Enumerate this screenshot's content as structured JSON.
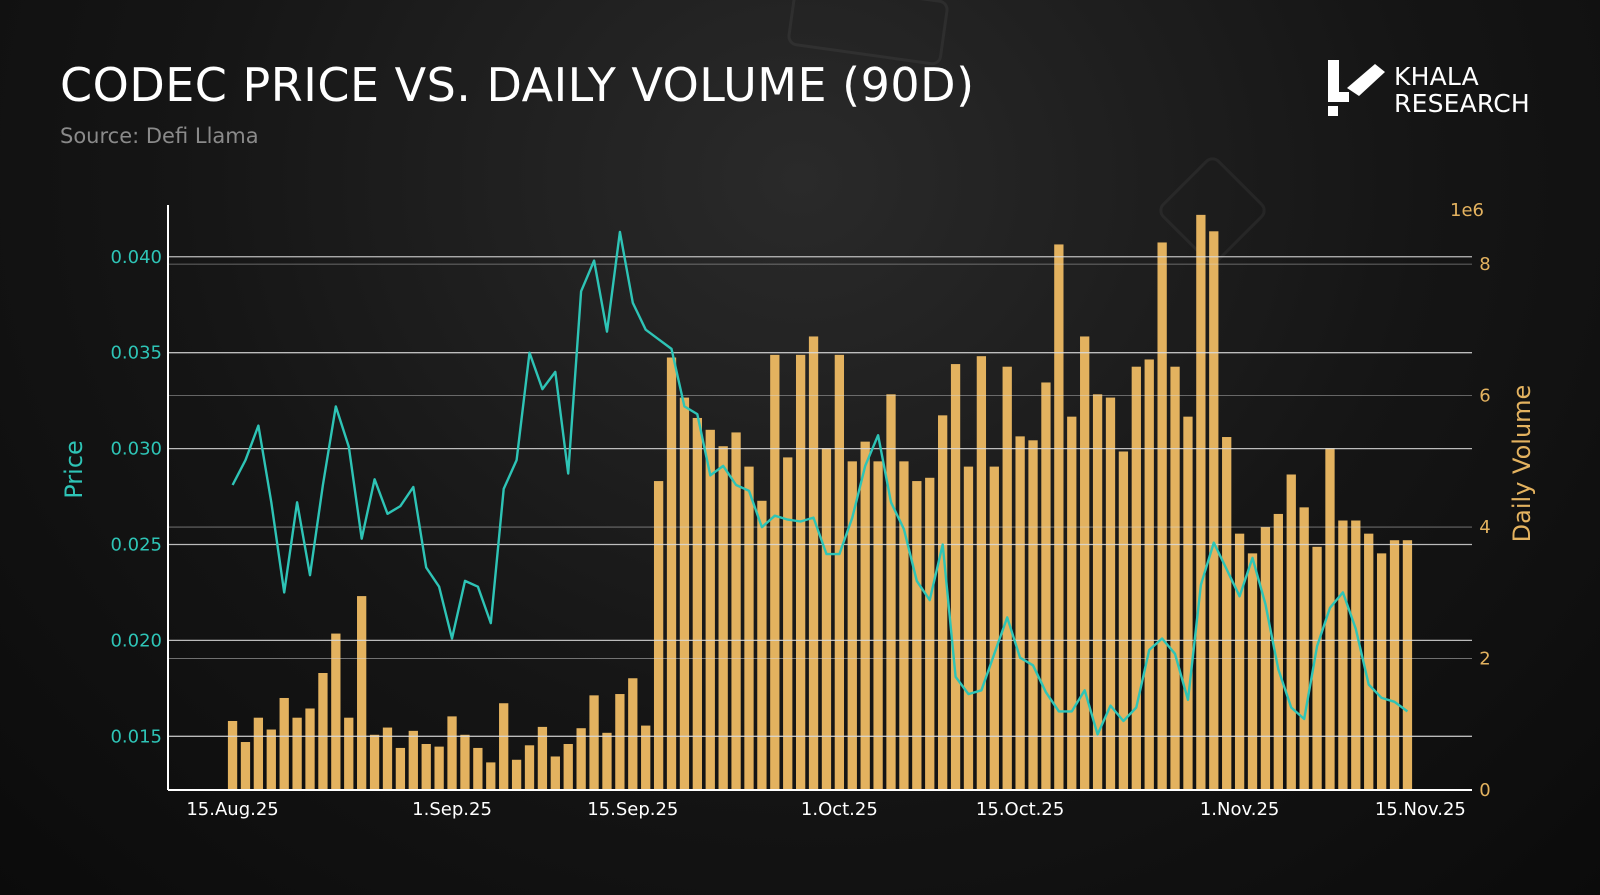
{
  "header": {
    "title": "CODEC PRICE VS. DAILY VOLUME (90D)",
    "subtitle": "Source: Defi Llama"
  },
  "brand": {
    "line1": "KHALA",
    "line2": "RESEARCH"
  },
  "colors": {
    "price": "#2ec4b6",
    "volume": "#e3b25f",
    "grid": "#d9d9d9",
    "axis": "#ffffff",
    "tick_text": "#ffffff",
    "volume_axis_text": "#e3b25f",
    "price_axis_text": "#2ec4b6"
  },
  "chart_data": {
    "type": "bar+line",
    "title": "CODEC PRICE VS. DAILY VOLUME (90D)",
    "ylabel_left": "Price",
    "ylabel_right": "Daily Volume",
    "right_axis_multiplier": "1e6",
    "ylim_left": [
      0.0122,
      0.0427
    ],
    "ylim_right": [
      0,
      8.9
    ],
    "left_ticks": [
      "0.015",
      "0.020",
      "0.025",
      "0.030",
      "0.035",
      "0.040"
    ],
    "left_tick_values": [
      0.015,
      0.02,
      0.025,
      0.03,
      0.035,
      0.04
    ],
    "right_ticks": [
      "0",
      "2",
      "4",
      "6",
      "8"
    ],
    "right_tick_values": [
      0,
      2,
      4,
      6,
      8
    ],
    "x_ticks": [
      {
        "label": "15.Aug.25",
        "day": 0
      },
      {
        "label": "1.Sep.25",
        "day": 17
      },
      {
        "label": "15.Sep.25",
        "day": 31
      },
      {
        "label": "1.Oct.25",
        "day": 47
      },
      {
        "label": "15.Oct.25",
        "day": 61
      },
      {
        "label": "1.Nov.25",
        "day": 78
      },
      {
        "label": "15.Nov.25",
        "day": 92
      }
    ],
    "x_range_days": [
      -5,
      96
    ],
    "grid": true,
    "series": [
      {
        "name": "Daily Volume",
        "type": "bar",
        "axis": "right",
        "unit": "millions",
        "start_day": 0,
        "values": [
          1.05,
          0.73,
          1.1,
          0.92,
          1.4,
          1.1,
          1.24,
          1.78,
          2.38,
          1.1,
          2.95,
          0.84,
          0.95,
          0.64,
          0.9,
          0.7,
          0.66,
          1.12,
          0.84,
          0.64,
          0.42,
          1.32,
          0.46,
          0.68,
          0.96,
          0.51,
          0.7,
          0.94,
          1.44,
          0.87,
          1.46,
          1.7,
          0.98,
          4.7,
          6.58,
          5.97,
          5.66,
          5.48,
          5.23,
          5.44,
          4.92,
          4.4,
          6.62,
          5.06,
          6.62,
          6.9,
          5.2,
          6.62,
          5.0,
          5.3,
          5.0,
          6.02,
          5.0,
          4.7,
          4.75,
          5.7,
          6.48,
          4.92,
          6.6,
          4.92,
          6.44,
          5.38,
          5.32,
          6.2,
          8.3,
          5.68,
          6.9,
          6.02,
          5.97,
          5.15,
          6.44,
          6.55,
          8.33,
          6.44,
          5.68,
          8.75,
          8.5,
          5.37,
          3.9,
          3.6,
          4.0,
          4.2,
          4.8,
          4.3,
          3.7,
          5.2,
          4.1,
          4.1,
          3.9,
          3.6,
          3.8,
          3.8
        ]
      },
      {
        "name": "Price",
        "type": "line",
        "axis": "left",
        "start_day": 0,
        "values": [
          0.0281,
          0.0294,
          0.0312,
          0.0272,
          0.0225,
          0.0272,
          0.0234,
          0.0281,
          0.0322,
          0.0301,
          0.0253,
          0.0284,
          0.0266,
          0.027,
          0.028,
          0.0238,
          0.0228,
          0.0201,
          0.0231,
          0.0228,
          0.0209,
          0.0279,
          0.0294,
          0.035,
          0.0331,
          0.034,
          0.0287,
          0.0382,
          0.0398,
          0.0361,
          0.0413,
          0.0376,
          0.0362,
          0.0357,
          0.0352,
          0.0322,
          0.0318,
          0.0286,
          0.0291,
          0.0281,
          0.0278,
          0.0259,
          0.0265,
          0.0263,
          0.0262,
          0.0264,
          0.0245,
          0.0245,
          0.0264,
          0.0291,
          0.0307,
          0.0272,
          0.0258,
          0.0231,
          0.0221,
          0.025,
          0.0181,
          0.0172,
          0.0174,
          0.0193,
          0.0212,
          0.0191,
          0.0187,
          0.0173,
          0.0163,
          0.0163,
          0.0174,
          0.0151,
          0.0166,
          0.0158,
          0.0165,
          0.0195,
          0.0201,
          0.0193,
          0.0169,
          0.0229,
          0.0251,
          0.0237,
          0.0223,
          0.0243,
          0.0219,
          0.0185,
          0.0165,
          0.0159,
          0.0197,
          0.0217,
          0.0225,
          0.0206,
          0.0177,
          0.017,
          0.0168,
          0.0163
        ]
      }
    ]
  }
}
